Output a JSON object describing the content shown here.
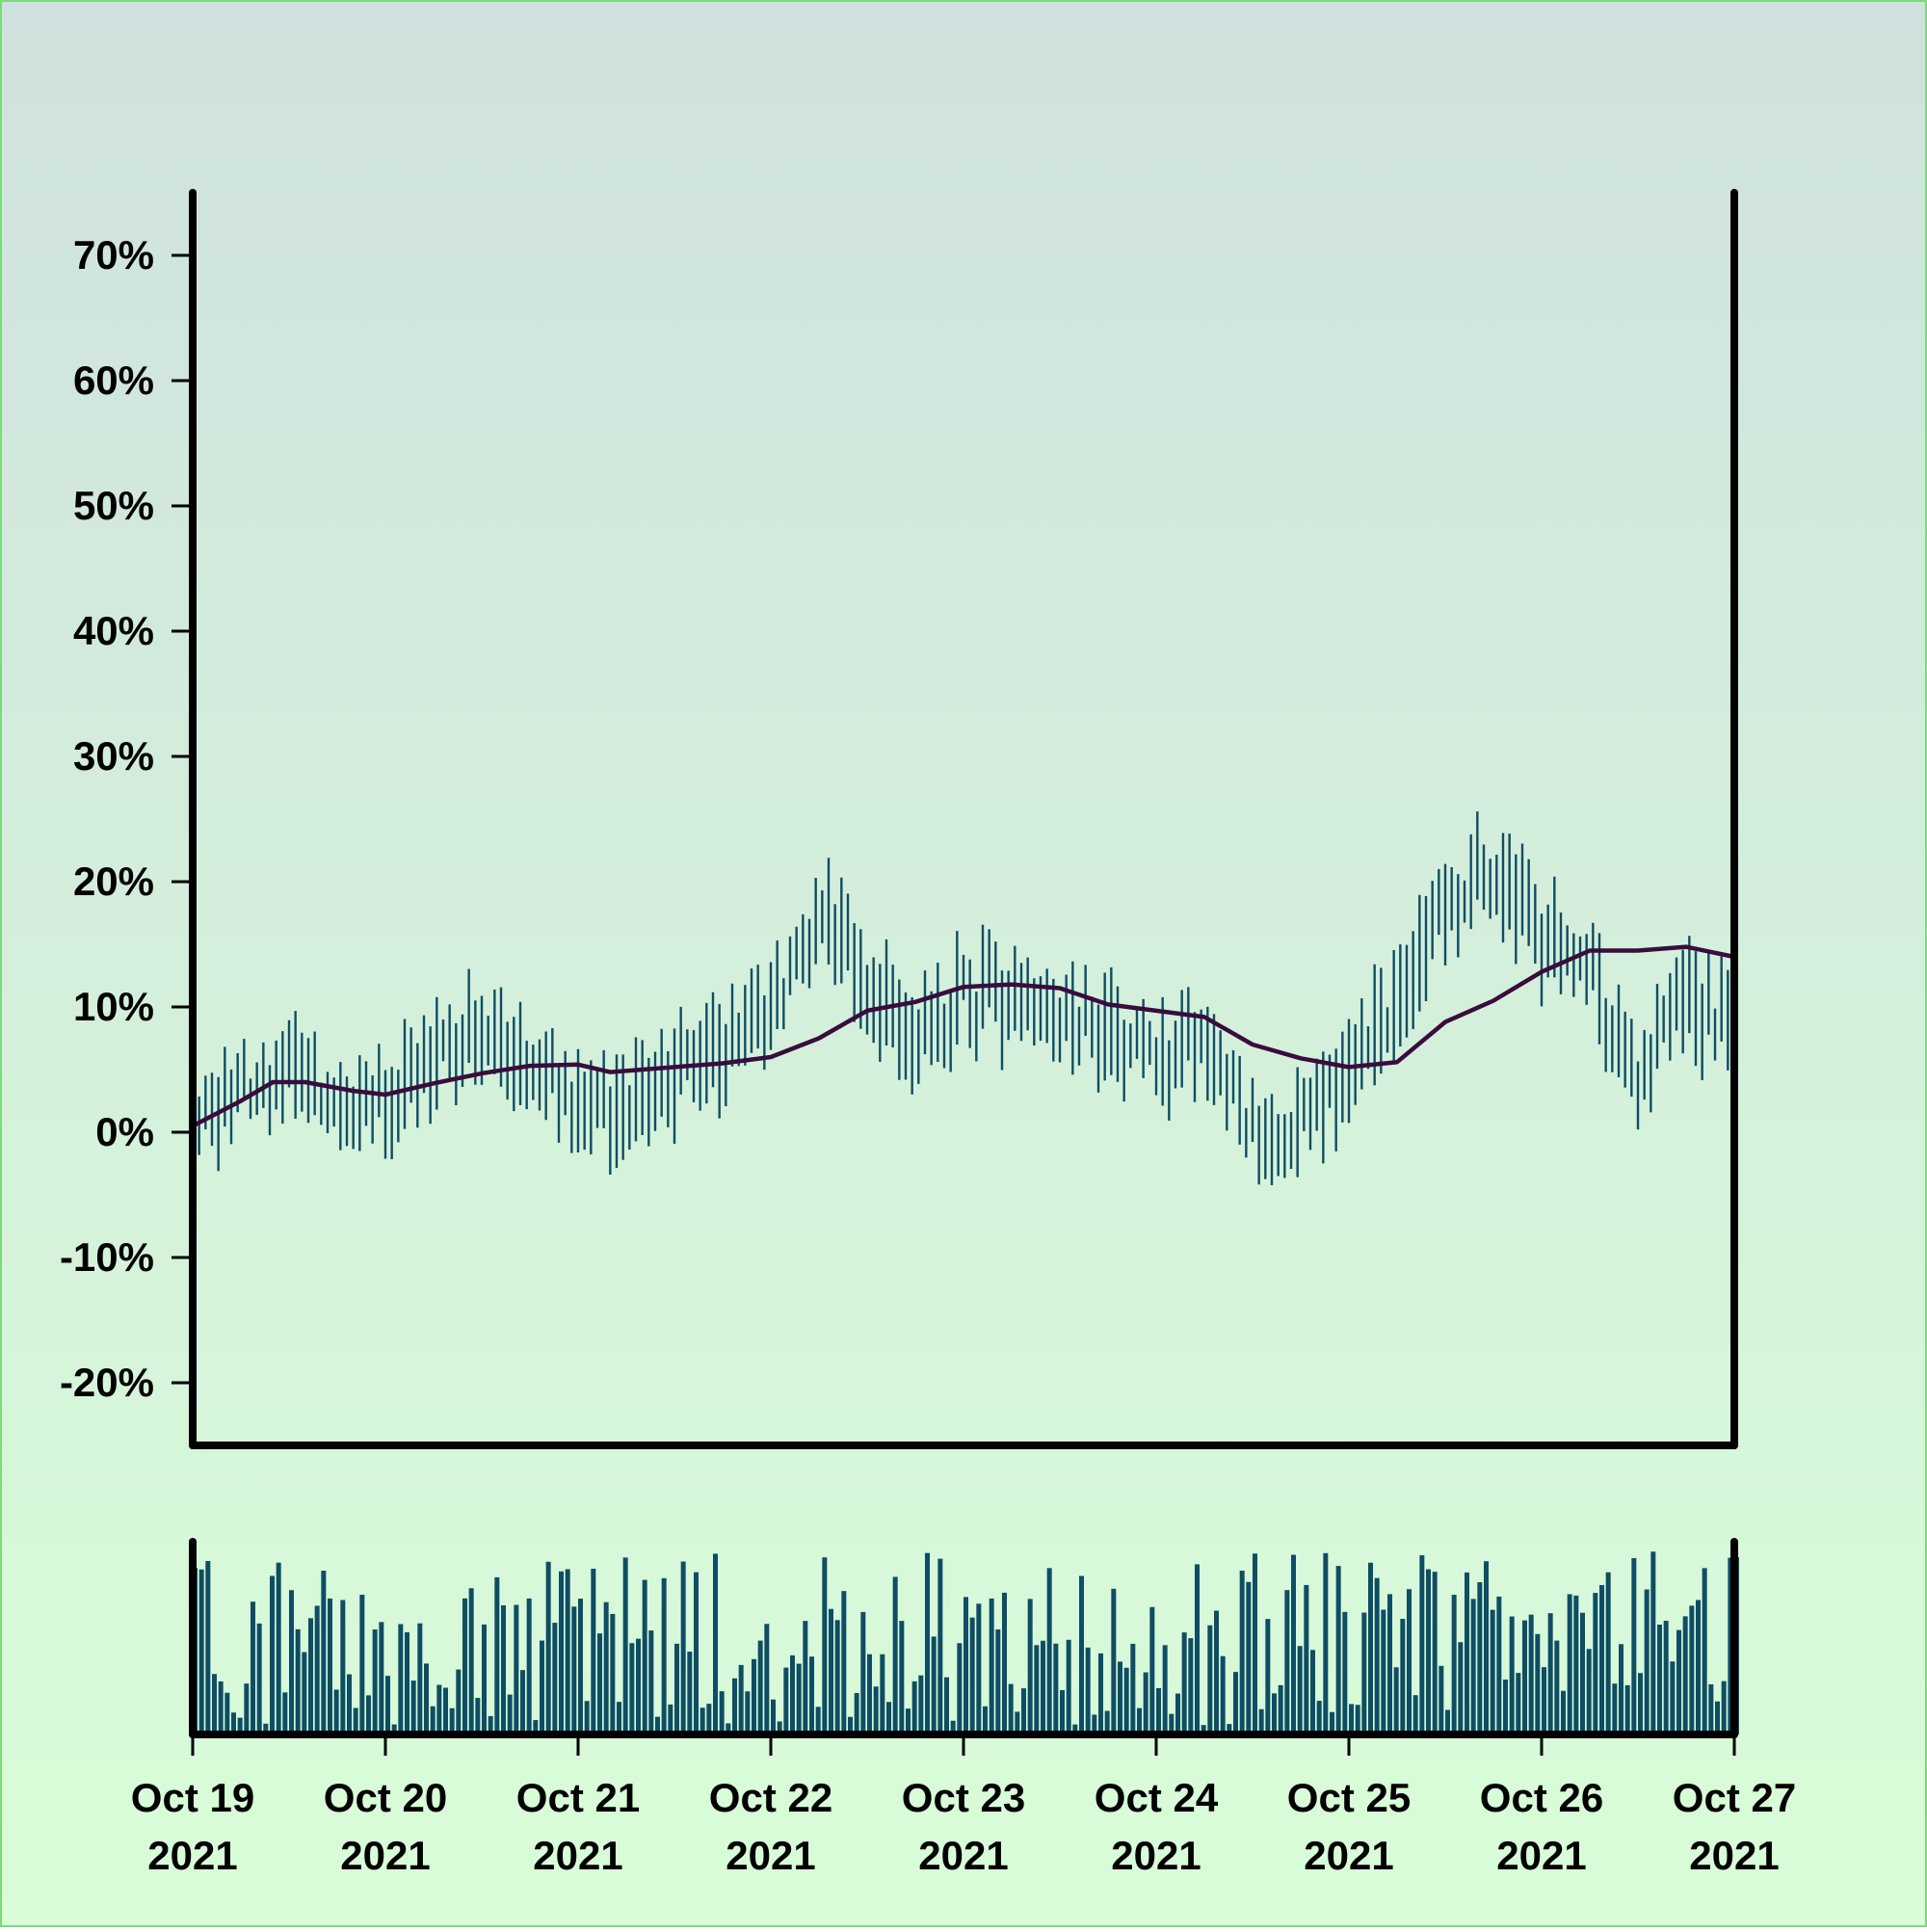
{
  "chart_data": {
    "type": "ohlc",
    "ylabel": "",
    "xlabel": "",
    "ylim": [
      -25,
      75
    ],
    "yticks": [
      -20,
      -10,
      0,
      10,
      20,
      30,
      40,
      50,
      60,
      70
    ],
    "ytick_labels": [
      "-20%",
      "-10%",
      "0%",
      "10%",
      "20%",
      "30%",
      "40%",
      "50%",
      "60%",
      "70%"
    ],
    "xlim": [
      "2021-10-19T00:00",
      "2021-10-27T00:00"
    ],
    "xticks": [
      "2021-10-19",
      "2021-10-20",
      "2021-10-21",
      "2021-10-22",
      "2021-10-23",
      "2021-10-24",
      "2021-10-25",
      "2021-10-26",
      "2021-10-27"
    ],
    "xtick_labels": [
      [
        "Oct 19",
        "2021"
      ],
      [
        "Oct 20",
        "2021"
      ],
      [
        "Oct 21",
        "2021"
      ],
      [
        "Oct 22",
        "2021"
      ],
      [
        "Oct 23",
        "2021"
      ],
      [
        "Oct 24",
        "2021"
      ],
      [
        "Oct 25",
        "2021"
      ],
      [
        "Oct 26",
        "2021"
      ],
      [
        "Oct 27",
        "2021"
      ]
    ],
    "interval_hours": 0.8,
    "price_anchors": [
      [
        "2021-10-19T00:00",
        2
      ],
      [
        "2021-10-19T08:00",
        4
      ],
      [
        "2021-10-19T14:00",
        5
      ],
      [
        "2021-10-19T20:00",
        1
      ],
      [
        "2021-10-20T00:00",
        2
      ],
      [
        "2021-10-20T06:00",
        6
      ],
      [
        "2021-10-20T12:00",
        8
      ],
      [
        "2021-10-20T18:00",
        6
      ],
      [
        "2021-10-21T00:00",
        2
      ],
      [
        "2021-10-21T06:00",
        2
      ],
      [
        "2021-10-21T12:00",
        5
      ],
      [
        "2021-10-21T18:00",
        7
      ],
      [
        "2021-10-22T00:00",
        10
      ],
      [
        "2021-10-22T06:00",
        17
      ],
      [
        "2021-10-22T12:00",
        12
      ],
      [
        "2021-10-22T18:00",
        7
      ],
      [
        "2021-10-23T00:00",
        11
      ],
      [
        "2021-10-23T06:00",
        11
      ],
      [
        "2021-10-23T12:00",
        9
      ],
      [
        "2021-10-23T18:00",
        7
      ],
      [
        "2021-10-24T00:00",
        6
      ],
      [
        "2021-10-24T06:00",
        8
      ],
      [
        "2021-10-24T12:00",
        0
      ],
      [
        "2021-10-24T18:00",
        0
      ],
      [
        "2021-10-25T00:00",
        5
      ],
      [
        "2021-10-25T06:00",
        10
      ],
      [
        "2021-10-25T12:00",
        18
      ],
      [
        "2021-10-25T18:00",
        21
      ],
      [
        "2021-10-26T00:00",
        16
      ],
      [
        "2021-10-26T06:00",
        13
      ],
      [
        "2021-10-26T12:00",
        4
      ],
      [
        "2021-10-26T18:00",
        12
      ],
      [
        "2021-10-27T00:00",
        7
      ]
    ],
    "moving_average": [
      [
        "2021-10-19T00:00",
        0.5
      ],
      [
        "2021-10-19T06:00",
        2.5
      ],
      [
        "2021-10-19T10:00",
        4
      ],
      [
        "2021-10-19T14:00",
        4
      ],
      [
        "2021-10-19T20:00",
        3.3
      ],
      [
        "2021-10-20T00:00",
        3
      ],
      [
        "2021-10-20T06:00",
        3.9
      ],
      [
        "2021-10-20T12:00",
        4.7
      ],
      [
        "2021-10-20T18:00",
        5.3
      ],
      [
        "2021-10-21T00:00",
        5.4
      ],
      [
        "2021-10-21T04:00",
        4.8
      ],
      [
        "2021-10-21T12:00",
        5.2
      ],
      [
        "2021-10-21T18:00",
        5.5
      ],
      [
        "2021-10-22T00:00",
        6
      ],
      [
        "2021-10-22T06:00",
        7.5
      ],
      [
        "2021-10-22T12:00",
        9.7
      ],
      [
        "2021-10-22T18:00",
        10.4
      ],
      [
        "2021-10-23T00:00",
        11.6
      ],
      [
        "2021-10-23T06:00",
        11.8
      ],
      [
        "2021-10-23T12:00",
        11.5
      ],
      [
        "2021-10-23T18:00",
        10.2
      ],
      [
        "2021-10-24T00:00",
        9.7
      ],
      [
        "2021-10-24T06:00",
        9.2
      ],
      [
        "2021-10-24T12:00",
        7
      ],
      [
        "2021-10-24T18:00",
        5.9
      ],
      [
        "2021-10-25T00:00",
        5.2
      ],
      [
        "2021-10-25T06:00",
        5.6
      ],
      [
        "2021-10-25T12:00",
        8.8
      ],
      [
        "2021-10-25T18:00",
        10.5
      ],
      [
        "2021-10-26T00:00",
        12.8
      ],
      [
        "2021-10-26T06:00",
        14.5
      ],
      [
        "2021-10-26T12:00",
        14.5
      ],
      [
        "2021-10-26T18:00",
        14.8
      ],
      [
        "2021-10-27T00:00",
        14
      ]
    ],
    "colors": {
      "bars": "#0e4d64",
      "moving_average": "#3a0c3d",
      "axis": "#000000",
      "background_top": "#cfe1de",
      "background_bottom": "#d9fdd8",
      "border": "#7fd87f"
    },
    "volume_panel": true,
    "grid": false
  }
}
